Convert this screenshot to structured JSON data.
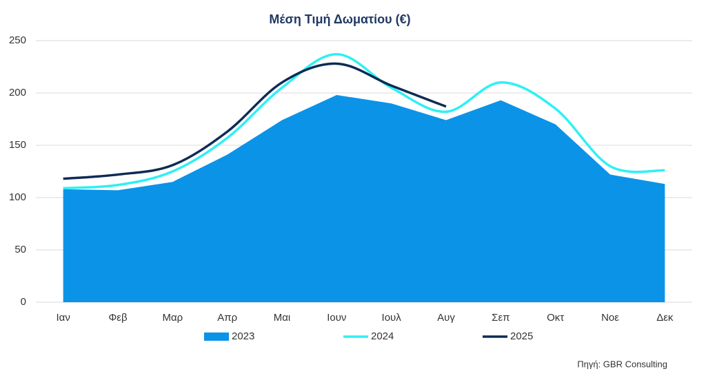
{
  "chart_data": {
    "type": "line",
    "title": "Μέση Τιμή Δωματίου (€)",
    "categories": [
      "Ιαν",
      "Φεβ",
      "Μαρ",
      "Απρ",
      "Μαι",
      "Ιουν",
      "Ιουλ",
      "Αυγ",
      "Σεπ",
      "Οκτ",
      "Νοε",
      "Δεκ"
    ],
    "series": [
      {
        "name": "2023",
        "color": "#0b93e8",
        "mark": "area",
        "values": [
          108,
          107,
          115,
          141,
          174,
          198,
          190,
          174,
          193,
          170,
          122,
          113
        ]
      },
      {
        "name": "2024",
        "color": "#2ef0f5",
        "mark": "line",
        "values": [
          109,
          112,
          125,
          157,
          205,
          237,
          205,
          182,
          210,
          185,
          130,
          126
        ]
      },
      {
        "name": "2025",
        "color": "#0d2b55",
        "mark": "line",
        "values": [
          118,
          122,
          131,
          163,
          210,
          228,
          207,
          187,
          null,
          null,
          null,
          null
        ]
      }
    ],
    "smooth": true,
    "ylim": [
      0,
      250
    ],
    "yticks": [
      0,
      50,
      100,
      150,
      200,
      250
    ],
    "grid": true,
    "legend": "bottom",
    "source": "Πηγή: GBR Consulting"
  }
}
